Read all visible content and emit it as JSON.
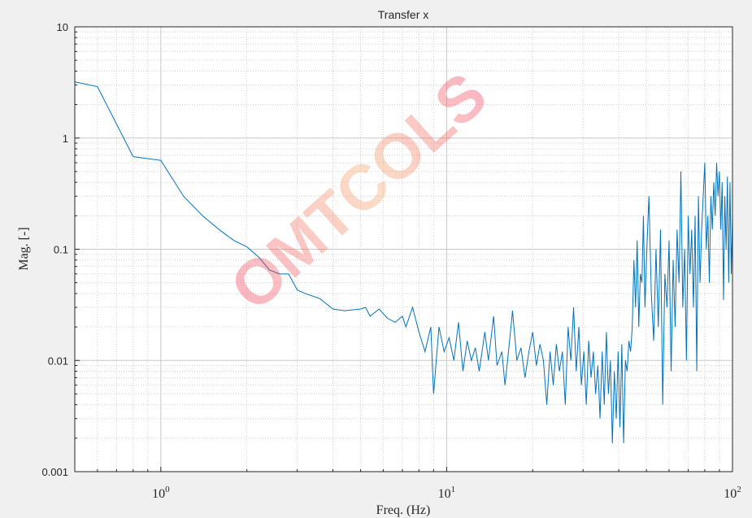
{
  "chart_data": {
    "type": "line",
    "title": "Transfer x",
    "x_label": "Freq. (Hz)",
    "y_label": "Mag. [-]",
    "watermark": "OMTCOLS",
    "x_log": true,
    "y_log": true,
    "grid": true,
    "minor_grid": true,
    "xlim": [
      0.5,
      100
    ],
    "ylim": [
      0.001,
      10
    ],
    "xticks": [
      {
        "value": 1,
        "label": "10",
        "exponent": "0"
      },
      {
        "value": 10,
        "label": "10",
        "exponent": "1"
      },
      {
        "value": 100,
        "label": "10",
        "exponent": "2"
      }
    ],
    "yticks": [
      0.001,
      0.01,
      0.1,
      1,
      10
    ],
    "series": [
      {
        "color": "#0072bd",
        "x": [
          0.5,
          0.6,
          0.8,
          1.0,
          1.2,
          1.4,
          1.6,
          1.8,
          2.0,
          2.2,
          2.4,
          2.6,
          2.8,
          3.0,
          3.2,
          3.6,
          4.0,
          4.4,
          5.0,
          5.2,
          5.4,
          5.8,
          6.2,
          6.6,
          7.0,
          7.2,
          7.6,
          8.0,
          8.4,
          8.8,
          9.0,
          9.4,
          9.8,
          10.2,
          10.6,
          11.0,
          11.4,
          11.8,
          12.2,
          12.6,
          13.0,
          13.6,
          14.0,
          14.6,
          15.0,
          15.6,
          16.0,
          16.6,
          17.0,
          17.6,
          18.2,
          18.8,
          19.4,
          20.0,
          20.6,
          21.2,
          21.8,
          22.4,
          23.0,
          23.6,
          24.2,
          24.8,
          25.4,
          26.0,
          26.6,
          27.2,
          27.8,
          28.4,
          29.0,
          29.6,
          30.2,
          30.8,
          31.4,
          32.0,
          32.6,
          33.2,
          33.8,
          34.4,
          35.0,
          35.6,
          36.2,
          36.8,
          37.4,
          38.0,
          38.6,
          39.2,
          39.8,
          40.4,
          41.0,
          41.6,
          42.2,
          42.8,
          43.4,
          44.0,
          44.6,
          45.2,
          45.8,
          46.4,
          47.0,
          47.6,
          48.2,
          48.8,
          49.4,
          50.0,
          51.0,
          52.0,
          53.0,
          54.0,
          55.0,
          56.0,
          57.0,
          58.0,
          59.0,
          60.0,
          61.0,
          62.0,
          63.0,
          64.0,
          65.0,
          66.0,
          67.0,
          68.0,
          69.0,
          70.0,
          71.0,
          72.0,
          73.0,
          74.0,
          75.0,
          76.0,
          77.0,
          78.0,
          80.0,
          81.0,
          82.0,
          83.0,
          84.0,
          85.0,
          86.0,
          87.0,
          88.0,
          89.0,
          90.0,
          91.0,
          92.0,
          93.0,
          94.0,
          95.0,
          96.0,
          97.0,
          98.0,
          99.0,
          100
        ],
        "values": [
          3.2,
          2.9,
          0.68,
          0.63,
          0.3,
          0.2,
          0.15,
          0.12,
          0.105,
          0.085,
          0.065,
          0.06,
          0.06,
          0.043,
          0.04,
          0.036,
          0.029,
          0.028,
          0.029,
          0.03,
          0.025,
          0.029,
          0.024,
          0.022,
          0.025,
          0.02,
          0.03,
          0.018,
          0.012,
          0.02,
          0.005,
          0.02,
          0.012,
          0.016,
          0.01,
          0.022,
          0.008,
          0.015,
          0.01,
          0.013,
          0.008,
          0.018,
          0.01,
          0.025,
          0.009,
          0.012,
          0.006,
          0.015,
          0.028,
          0.01,
          0.013,
          0.007,
          0.012,
          0.018,
          0.009,
          0.014,
          0.01,
          0.004,
          0.012,
          0.006,
          0.014,
          0.008,
          0.012,
          0.004,
          0.02,
          0.01,
          0.03,
          0.008,
          0.02,
          0.006,
          0.012,
          0.004,
          0.015,
          0.007,
          0.012,
          0.005,
          0.009,
          0.003,
          0.012,
          0.004,
          0.018,
          0.005,
          0.01,
          0.0018,
          0.008,
          0.003,
          0.012,
          0.0025,
          0.014,
          0.0018,
          0.01,
          0.008,
          0.015,
          0.012,
          0.02,
          0.08,
          0.03,
          0.12,
          0.02,
          0.06,
          0.05,
          0.2,
          0.03,
          0.08,
          0.3,
          0.04,
          0.015,
          0.1,
          0.02,
          0.15,
          0.004,
          0.06,
          0.03,
          0.12,
          0.008,
          0.08,
          0.02,
          0.15,
          0.05,
          0.5,
          0.03,
          0.1,
          0.01,
          0.2,
          0.06,
          0.15,
          0.03,
          0.2,
          0.008,
          0.3,
          0.05,
          0.15,
          0.6,
          0.1,
          0.2,
          0.05,
          0.3,
          0.15,
          0.4,
          0.2,
          0.6,
          0.3,
          0.5,
          0.15,
          0.4,
          0.035,
          0.3,
          0.1,
          0.45,
          0.05,
          0.4,
          0.06,
          0.2
        ]
      }
    ]
  }
}
